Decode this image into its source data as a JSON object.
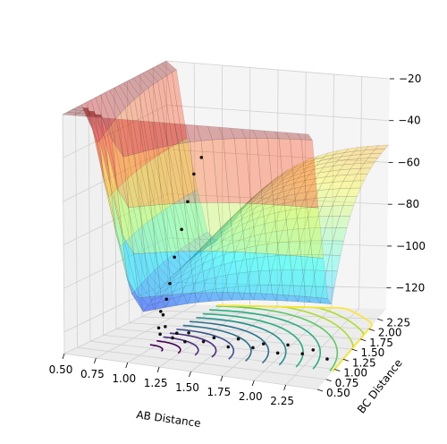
{
  "chart_data": {
    "type": "surface3d",
    "title": "",
    "xlabel": "AB Distance",
    "ylabel": "BC Distance",
    "zlabel": "",
    "xlim": [
      0.5,
      2.5
    ],
    "ylim": [
      0.5,
      2.5
    ],
    "zlim": [
      -130,
      -20
    ],
    "x_ticks": [
      "0.50",
      "0.75",
      "1.00",
      "1.25",
      "1.50",
      "1.75",
      "2.00",
      "2.25"
    ],
    "y_ticks": [
      "0.50",
      "0.75",
      "1.00",
      "1.25",
      "1.50",
      "1.75",
      "2.00",
      "2.25"
    ],
    "z_ticks": [
      "−20",
      "−40",
      "−60",
      "−80",
      "−100",
      "−120"
    ],
    "z_tick_values": [
      -20,
      -40,
      -60,
      -80,
      -100,
      -120
    ],
    "colormap_surface": "jet",
    "colormap_contour": "viridis",
    "surface": {
      "description_free": true,
      "plateau_energy": -25,
      "well_energy": -121,
      "wall_energy": -20,
      "sample_points_AB": [
        0.5,
        0.7,
        0.9,
        1.1,
        1.3,
        1.5,
        1.7,
        1.9,
        2.1,
        2.3,
        2.5
      ],
      "sample_points_BC": [
        0.5,
        0.7,
        0.9,
        1.1,
        1.3,
        1.5,
        1.7,
        1.9,
        2.1,
        2.3,
        2.5
      ]
    },
    "trajectory": {
      "AB": [
        0.9,
        0.92,
        0.95,
        0.98,
        1.0,
        1.02,
        1.05,
        1.08,
        1.1,
        1.12,
        1.15,
        1.2,
        1.25,
        1.3,
        1.35,
        1.4,
        1.5,
        1.6,
        1.7,
        1.8,
        1.9,
        2.0,
        2.1,
        2.2,
        2.3,
        2.4,
        2.5
      ],
      "BC": [
        2.3,
        2.1,
        1.9,
        1.7,
        1.5,
        1.35,
        1.2,
        1.05,
        0.95,
        0.85,
        0.8,
        0.78,
        0.8,
        0.76,
        0.8,
        0.75,
        0.8,
        0.76,
        0.8,
        0.75,
        0.8,
        0.76,
        0.8,
        0.75,
        0.8,
        0.76,
        0.8
      ],
      "energy": [
        -60,
        -65,
        -75,
        -85,
        -95,
        -105,
        -110,
        -115,
        -112,
        -118,
        -120,
        -116,
        -121,
        -118,
        -122,
        -117,
        -121,
        -118,
        -122,
        -117,
        -121,
        -118,
        -122,
        -117,
        -121,
        -118,
        -122
      ]
    }
  }
}
